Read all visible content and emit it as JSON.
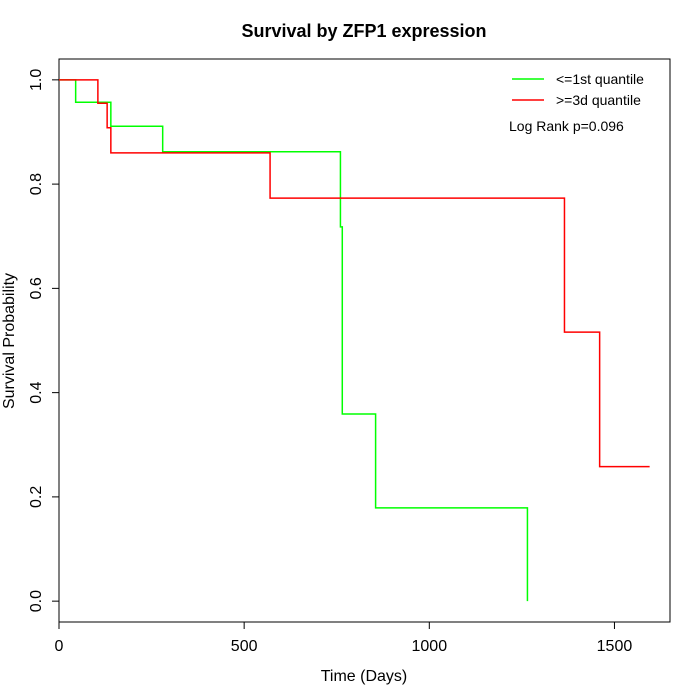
{
  "chart_data": {
    "type": "line",
    "step": true,
    "title": "Survival by ZFP1 expression",
    "xlabel": "Time (Days)",
    "ylabel": "Survival Probability",
    "xlim": [
      0,
      1650
    ],
    "ylim": [
      -0.04,
      1.04
    ],
    "xticks": [
      0,
      500,
      1000,
      1500
    ],
    "xtick_labels": [
      "0",
      "500",
      "1000",
      "1500"
    ],
    "yticks": [
      0.0,
      0.2,
      0.4,
      0.6,
      0.8,
      1.0
    ],
    "ytick_labels": [
      "0.0",
      "0.2",
      "0.4",
      "0.6",
      "0.8",
      "1.0"
    ],
    "grid": false,
    "legend_position": "top-right",
    "annotation": "Log Rank p=0.096",
    "series": [
      {
        "name": "<=1st quantile",
        "color": "#00ff00",
        "x": [
          0,
          45,
          130,
          140,
          280,
          655,
          760,
          765,
          855,
          1265,
          1265
        ],
        "y": [
          1.0,
          0.957,
          0.957,
          0.911,
          0.862,
          0.862,
          0.718,
          0.359,
          0.179,
          0.179,
          0.0
        ]
      },
      {
        "name": ">=3d quantile",
        "color": "#ff0000",
        "x": [
          0,
          105,
          130,
          140,
          570,
          1365,
          1460,
          1595
        ],
        "y": [
          1.0,
          0.955,
          0.908,
          0.86,
          0.773,
          0.516,
          0.258,
          0.258
        ]
      }
    ]
  }
}
